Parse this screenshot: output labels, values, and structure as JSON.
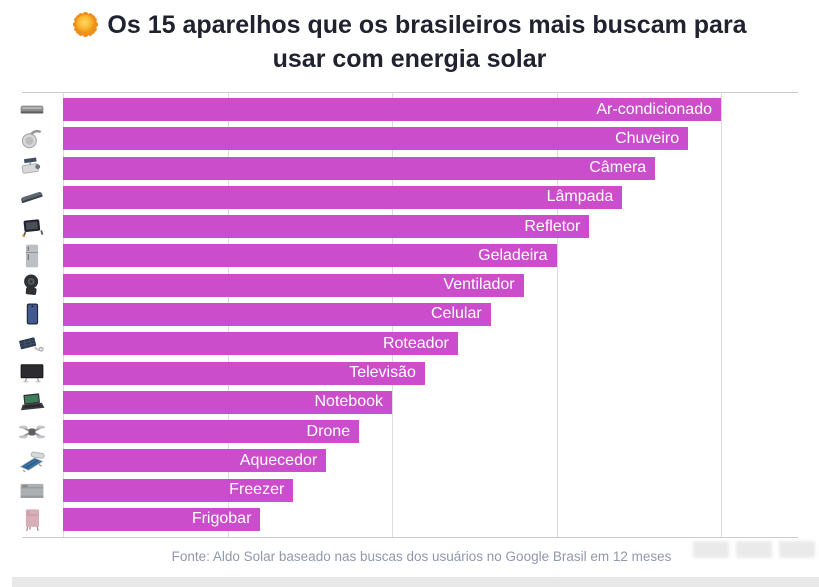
{
  "title": {
    "emoji": "sun",
    "line1": "Os 15 aparelhos que os brasileiros mais buscam para",
    "line2": "usar com energia solar"
  },
  "footer": {
    "source": "Fonte: Aldo Solar baseado nas buscas dos usuários no Google Brasil em 12 meses"
  },
  "colors": {
    "bar": "#CC4DCC",
    "title_text": "#20222F",
    "source_text": "#8E99AD",
    "gridline": "#DBDBDB",
    "axis_line": "#CCCCCC",
    "bar_label_text": "#FFFFFF",
    "bottom_strip": "#E8E8E8"
  },
  "chart_data": {
    "type": "bar",
    "orientation": "horizontal",
    "title": "Os 15 aparelhos que os brasileiros mais buscam para usar com energia solar",
    "categories": [
      "Ar-condicionado",
      "Chuveiro",
      "Câmera",
      "Lâmpada",
      "Refletor",
      "Geladeira",
      "Ventilador",
      "Celular",
      "Roteador",
      "Televisão",
      "Notebook",
      "Drone",
      "Aquecedor",
      "Freezer",
      "Frigobar"
    ],
    "values": [
      100,
      95,
      90,
      85,
      80,
      75,
      70,
      65,
      60,
      55,
      50,
      45,
      40,
      35,
      30
    ],
    "value_note": "no numeric axis labels shown; relative lengths estimated from gridlines",
    "xlim": [
      0,
      100
    ],
    "gridlines": [
      0,
      25,
      50,
      75,
      100
    ],
    "grid": "vertical",
    "legend": "none",
    "bar_color": "#CC4DCC",
    "label_position": "inside-end",
    "icons": [
      "air-conditioner",
      "shower-head",
      "security-camera",
      "street-lamp",
      "floodlight",
      "refrigerator",
      "portable-fan",
      "smartphone",
      "solar-router",
      "television",
      "laptop",
      "drone",
      "solar-water-heater",
      "chest-freezer",
      "mini-fridge"
    ]
  }
}
